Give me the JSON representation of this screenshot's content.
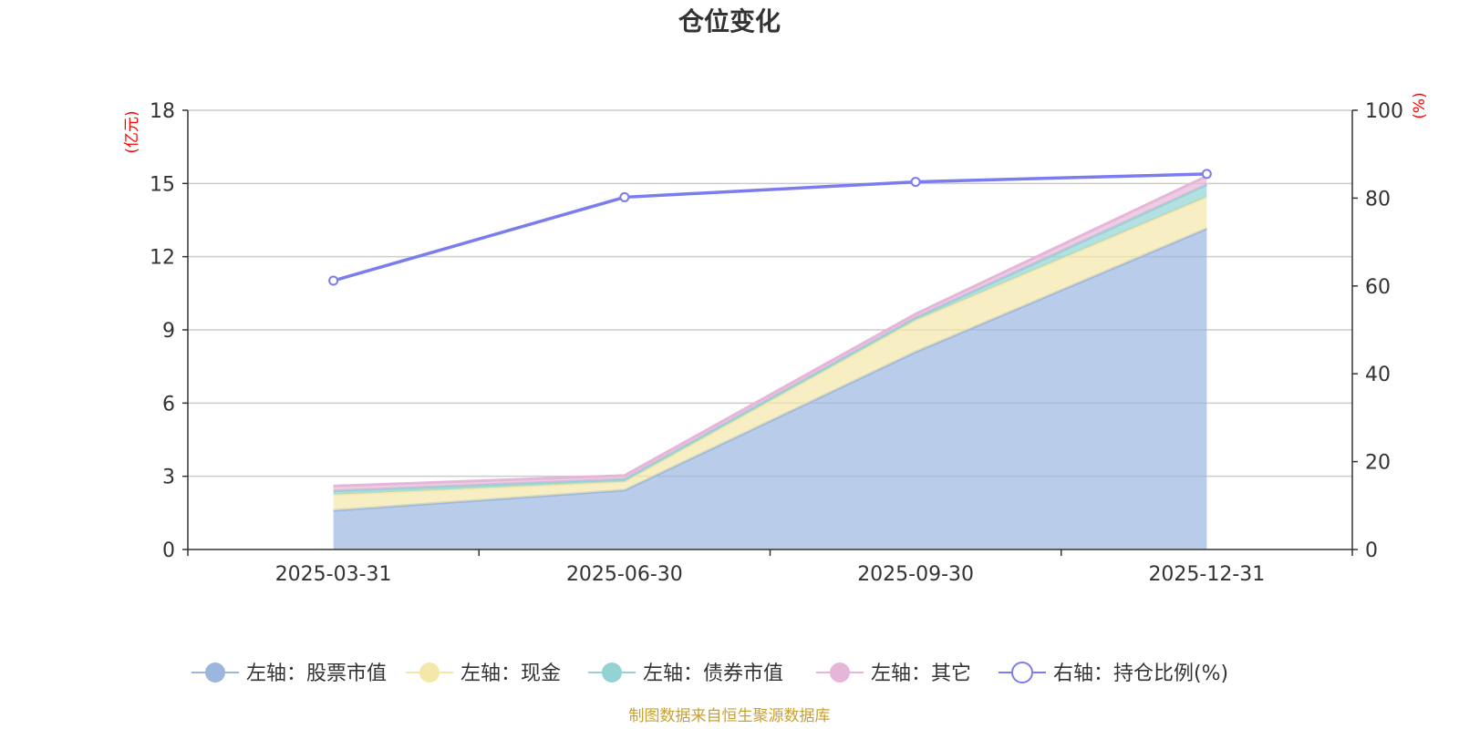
{
  "chart_data": {
    "type": "area",
    "title": "仓位变化",
    "categories": [
      "2025-03-31",
      "2025-06-30",
      "2025-09-30",
      "2025-12-31"
    ],
    "left_axis": {
      "unit": "(亿元)",
      "ylim": [
        0,
        18
      ],
      "ticks": [
        "0",
        "3",
        "6",
        "9",
        "12",
        "15",
        "18"
      ]
    },
    "right_axis": {
      "unit": "(%)",
      "ylim": [
        0,
        100
      ],
      "ticks": [
        "0",
        "20",
        "40",
        "60",
        "80",
        "100"
      ]
    },
    "stacked_series": [
      {
        "name": "左轴：股票市值",
        "color": "#9bb7e0",
        "values": [
          1.6,
          2.43,
          8.1,
          13.15
        ]
      },
      {
        "name": "左轴：现金",
        "color": "#f5e7a9",
        "values": [
          0.65,
          0.35,
          1.3,
          1.3
        ]
      },
      {
        "name": "左轴：债券市值",
        "color": "#93d3d4",
        "values": [
          0.15,
          0.1,
          0.1,
          0.5
        ]
      },
      {
        "name": "左轴：其它",
        "color": "#e6b6d9",
        "values": [
          0.2,
          0.15,
          0.15,
          0.35
        ]
      }
    ],
    "line_series": {
      "name": "右轴：持仓比例(%)",
      "color": "#7b7cee",
      "values": [
        61.2,
        80.2,
        83.7,
        85.5
      ]
    },
    "grid": true,
    "legend_position": "bottom"
  },
  "source": "制图数据来自恒生聚源数据库"
}
